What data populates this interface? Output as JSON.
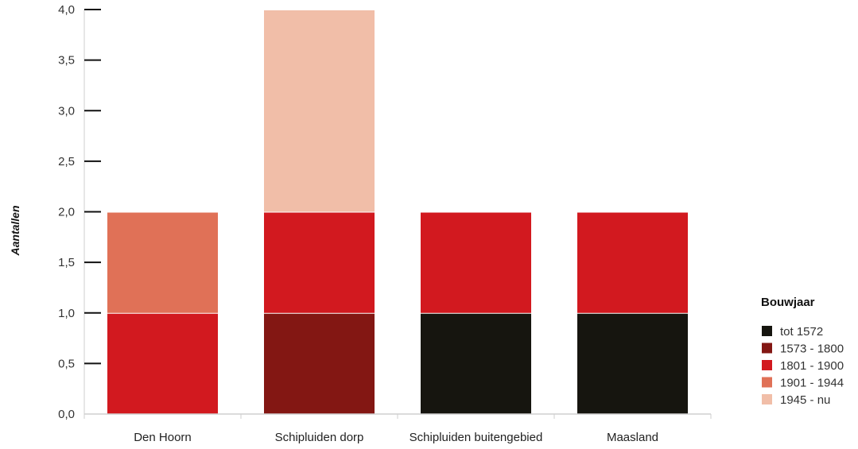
{
  "chart_data": {
    "type": "bar",
    "stacked": true,
    "title": "",
    "xlabel": "",
    "ylabel": "Aantallen",
    "ylim": [
      0,
      4
    ],
    "yticks": [
      "0,0",
      "0,5",
      "1,0",
      "1,5",
      "2,0",
      "2,5",
      "3,0",
      "3,5",
      "4,0"
    ],
    "yticks_values": [
      0,
      0.5,
      1,
      1.5,
      2,
      2.5,
      3,
      3.5,
      4
    ],
    "grid": false,
    "legend_placement": "right",
    "legend_title": "Bouwjaar",
    "categories": [
      "Den Hoorn",
      "Schipluiden dorp",
      "Schipluiden buitengebied",
      "Maasland"
    ],
    "series": [
      {
        "name": "tot 1572",
        "color": "#16150f",
        "values": [
          0,
          0,
          1,
          1
        ]
      },
      {
        "name": "1573 - 1800",
        "color": "#831713",
        "values": [
          0,
          1,
          0,
          0
        ]
      },
      {
        "name": "1801 - 1900",
        "color": "#d2191f",
        "values": [
          1,
          1,
          1,
          1
        ]
      },
      {
        "name": "1901 - 1944",
        "color": "#e07157",
        "values": [
          1,
          0,
          0,
          0
        ]
      },
      {
        "name": "1945 - nu",
        "color": "#f1bea8",
        "values": [
          0,
          2,
          0,
          0
        ]
      }
    ]
  }
}
